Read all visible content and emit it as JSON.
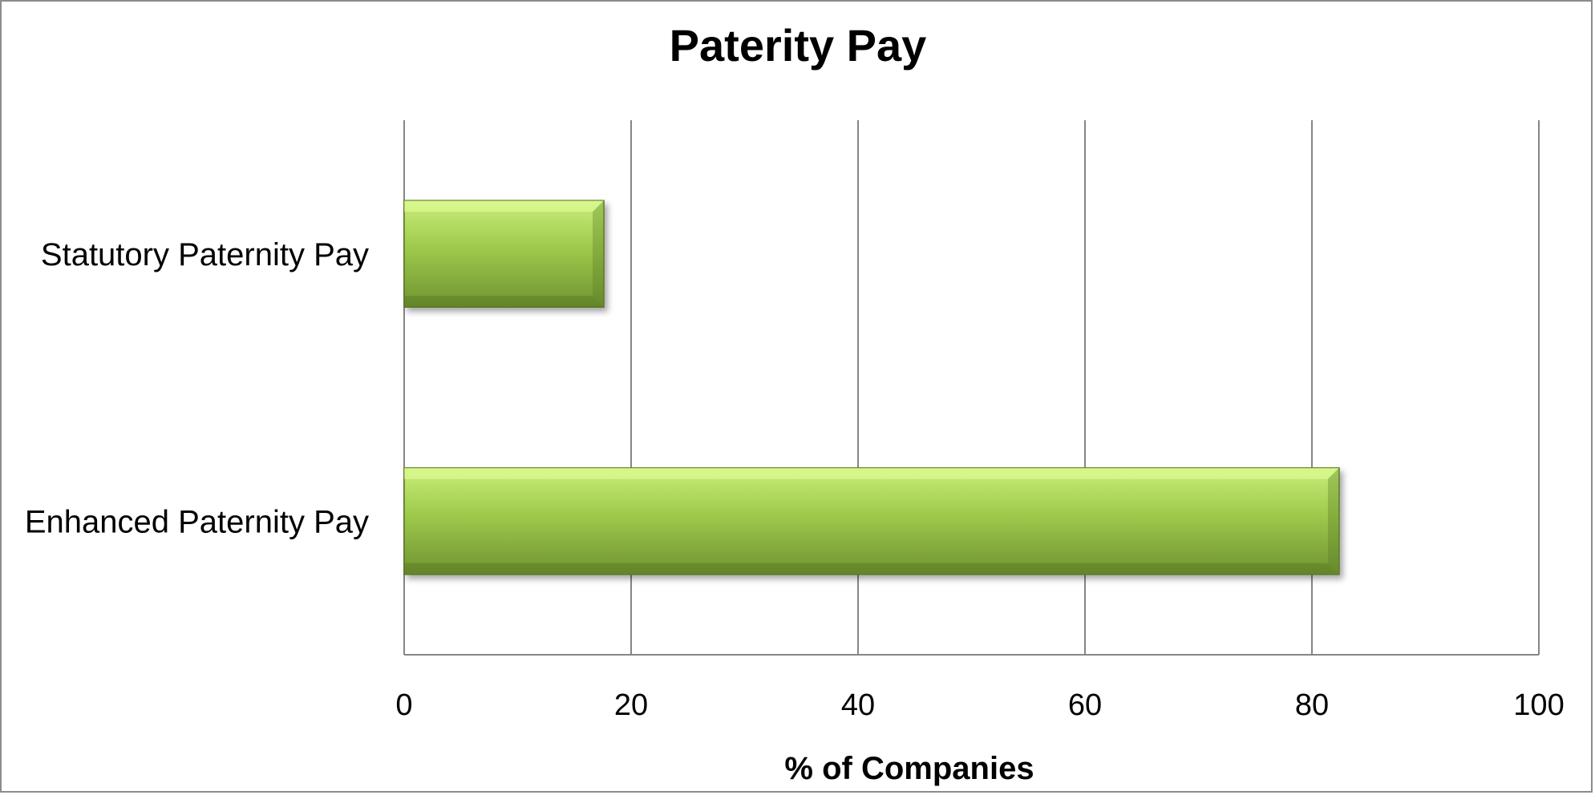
{
  "chart_data": {
    "type": "bar",
    "orientation": "horizontal",
    "title": "Paterity Pay",
    "xlabel": "% of Companies",
    "ylabel": "",
    "categories": [
      "Statutory Paternity Pay",
      "Enhanced Paternity Pay"
    ],
    "values": [
      17.6,
      82.4
    ],
    "xlim": [
      0,
      100
    ],
    "x_ticks": [
      0,
      20,
      40,
      60,
      80,
      100
    ],
    "grid": "vertical",
    "legend": "none",
    "colors": {
      "bar_top": "#c9ee7a",
      "bar_mid": "#9dc94b",
      "bar_bottom": "#6f9331",
      "bar_edge": "#5b7a27",
      "gridline": "#868686",
      "frame": "#8c8c8c"
    }
  }
}
